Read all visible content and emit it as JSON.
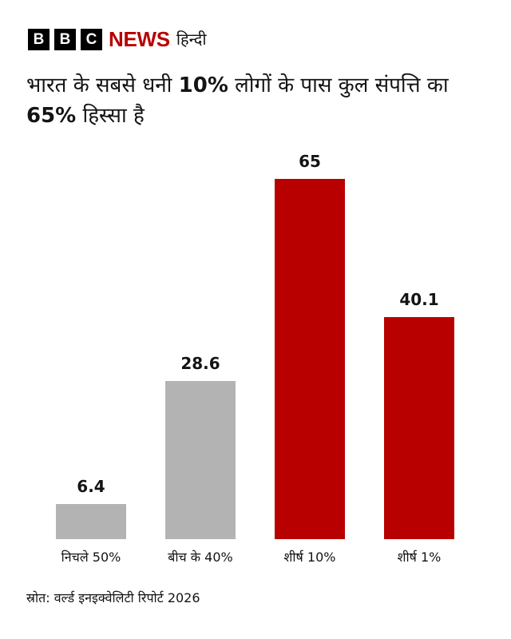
{
  "header": {
    "logo_letters": [
      "B",
      "B",
      "C"
    ],
    "news_label": "NEWS",
    "language_label": "हिन्दी",
    "brand_color": "#b80000"
  },
  "title": {
    "part1": "भारत के सबसे धनी ",
    "bold1": "10%",
    "part2": " लोगों के पास कुल संपत्ति का ",
    "bold2": "65%",
    "part3": " हिस्सा है"
  },
  "chart_data": {
    "type": "bar",
    "title": "भारत के सबसे धनी 10% लोगों के पास कुल संपत्ति का 65% हिस्सा है",
    "categories": [
      "निचले 50%",
      "बीच के 40%",
      "शीर्ष 10%",
      "शीर्ष 1%"
    ],
    "values": [
      6.4,
      28.6,
      65,
      40.1
    ],
    "value_labels": [
      "6.4",
      "28.6",
      "65",
      "40.1"
    ],
    "colors": [
      "#b3b3b3",
      "#b3b3b3",
      "#b80000",
      "#b80000"
    ],
    "xlabel": "",
    "ylabel": "",
    "ylim": [
      0,
      65
    ],
    "grid": false,
    "legend": "none"
  },
  "source": "स्रोत: वर्ल्ड इनइक्वेलिटी रिपोर्ट 2026"
}
